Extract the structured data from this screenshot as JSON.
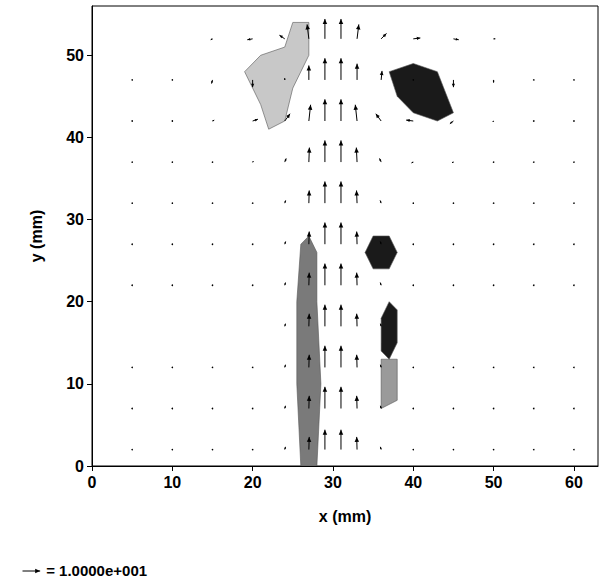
{
  "chart_data": {
    "type": "vector_field",
    "xlabel": "x (mm)",
    "ylabel": "y (mm)",
    "xlim": [
      0,
      63
    ],
    "ylim": [
      0,
      56
    ],
    "xticks": [
      0,
      10,
      20,
      30,
      40,
      50,
      60
    ],
    "yticks": [
      0,
      10,
      20,
      30,
      40,
      50
    ],
    "grid": false,
    "color": "#000000",
    "x": [
      5,
      10,
      15,
      20,
      24,
      27,
      29,
      31,
      33,
      36,
      40,
      45,
      50,
      55,
      60
    ],
    "y": [
      2,
      7,
      12,
      17,
      22,
      27,
      32,
      37,
      42,
      47,
      52
    ],
    "u": [
      [
        0,
        0,
        0.1,
        0.2,
        0.4,
        0.2,
        0,
        0,
        -0.2,
        -0.4,
        -0.2,
        -0.1,
        0,
        0,
        0
      ],
      [
        0,
        0,
        0.1,
        0.2,
        0.4,
        0.2,
        0,
        0,
        -0.2,
        -0.4,
        -0.2,
        -0.1,
        0,
        0,
        0
      ],
      [
        0,
        0,
        0.1,
        0.2,
        0.4,
        0.2,
        0,
        0,
        -0.2,
        -0.4,
        -0.2,
        -0.1,
        0,
        0,
        0
      ],
      [
        0,
        0,
        0.1,
        0.2,
        0.4,
        0.2,
        0,
        0,
        -0.2,
        -0.4,
        -0.3,
        -0.1,
        0,
        0,
        0
      ],
      [
        0,
        0,
        0.1,
        0.2,
        0.4,
        0.2,
        0,
        0,
        -0.2,
        -0.5,
        -0.3,
        -0.1,
        0,
        0,
        0
      ],
      [
        0,
        0,
        0.1,
        0.2,
        0.5,
        0.2,
        0,
        0,
        -0.2,
        -0.5,
        -0.3,
        -0.2,
        0,
        0,
        0
      ],
      [
        0,
        0,
        0.1,
        0.3,
        0.5,
        0.2,
        0,
        0,
        -0.3,
        -0.6,
        -0.5,
        -0.3,
        0,
        0,
        0
      ],
      [
        0,
        0,
        0.2,
        0.5,
        0.8,
        0.3,
        0,
        0,
        -0.4,
        -0.9,
        -1.0,
        -0.8,
        -0.2,
        0,
        0
      ],
      [
        0,
        0.2,
        1,
        3,
        3,
        1,
        0,
        0,
        -1,
        -3,
        -4,
        -2,
        -0.5,
        0,
        0
      ],
      [
        0,
        -0.3,
        -0.5,
        0,
        0,
        0,
        0,
        0,
        0,
        0.5,
        0,
        0,
        0,
        0,
        0
      ],
      [
        0,
        0,
        -1,
        -3,
        -3,
        -1,
        0,
        0,
        1,
        3,
        4,
        3,
        1,
        0,
        0
      ]
    ],
    "v": [
      [
        0.3,
        0.3,
        0.3,
        0.4,
        1.5,
        7,
        11,
        11,
        7,
        1.5,
        0.4,
        0.3,
        0.3,
        0.3,
        0.3
      ],
      [
        0.3,
        0.3,
        0.3,
        0.4,
        1.5,
        7,
        12,
        12,
        7,
        1.5,
        0.4,
        0.3,
        0.3,
        0.3,
        0.3
      ],
      [
        0.3,
        0.3,
        0.3,
        0.4,
        1.5,
        7,
        12,
        12,
        7,
        1.5,
        0.4,
        0.3,
        0.3,
        0.3,
        0.3
      ],
      [
        0.3,
        0.3,
        0.3,
        0.4,
        1.5,
        7,
        12,
        12,
        7,
        1.5,
        0.4,
        0.3,
        0.3,
        0.3,
        0.3
      ],
      [
        0.3,
        0.3,
        0.3,
        0.4,
        1.5,
        7,
        12,
        12,
        7,
        1.5,
        0.4,
        0.3,
        0.3,
        0.3,
        0.3
      ],
      [
        0.3,
        0.3,
        0.3,
        0.4,
        1.5,
        7,
        12,
        12,
        7,
        1.5,
        0.4,
        0.3,
        0.3,
        0.3,
        0.3
      ],
      [
        0.3,
        0.3,
        0.3,
        0.4,
        1.5,
        7,
        12,
        12,
        7,
        1.5,
        0.3,
        0.3,
        0.3,
        0.3,
        0.3
      ],
      [
        0.3,
        0.3,
        0.3,
        0.5,
        2,
        8,
        12,
        12,
        8,
        2,
        -0.5,
        -0.3,
        0.3,
        0.3,
        0.3
      ],
      [
        0.3,
        0.3,
        0.5,
        1,
        4,
        9,
        12,
        12,
        9,
        4,
        0.5,
        -1.5,
        -0.5,
        0.3,
        0.3
      ],
      [
        0.3,
        0,
        -2,
        -4,
        1,
        8,
        12,
        12,
        9,
        5,
        0.5,
        -4,
        -1.5,
        0.3,
        0.3
      ],
      [
        0.3,
        0.3,
        -0.5,
        -0.5,
        2,
        8,
        11,
        11,
        8,
        3,
        0.5,
        -0.5,
        0,
        0.3,
        0.3
      ]
    ],
    "reference": {
      "value": 10,
      "label": "= 1.0000e+001"
    },
    "patches": [
      {
        "color": "#7a7a7a",
        "points": [
          [
            26,
            0
          ],
          [
            28,
            0
          ],
          [
            28.5,
            10
          ],
          [
            28,
            20
          ],
          [
            28,
            26
          ],
          [
            27,
            28
          ],
          [
            26,
            27
          ],
          [
            25.5,
            20
          ],
          [
            25.5,
            10
          ]
        ]
      },
      {
        "color": "#c8c8c8",
        "points": [
          [
            19,
            48
          ],
          [
            21,
            50
          ],
          [
            24,
            51
          ],
          [
            25,
            54
          ],
          [
            27,
            54
          ],
          [
            27,
            50
          ],
          [
            25,
            46
          ],
          [
            24,
            42
          ],
          [
            22,
            41
          ],
          [
            21,
            44
          ]
        ]
      },
      {
        "color": "#1a1a1a",
        "points": [
          [
            37,
            48
          ],
          [
            40,
            49
          ],
          [
            43,
            48
          ],
          [
            45,
            43
          ],
          [
            43,
            42
          ],
          [
            40,
            43
          ],
          [
            38,
            45
          ]
        ]
      },
      {
        "color": "#1a1a1a",
        "points": [
          [
            34,
            26
          ],
          [
            35,
            28
          ],
          [
            37,
            28
          ],
          [
            38,
            26
          ],
          [
            37,
            24
          ],
          [
            35,
            24
          ]
        ]
      },
      {
        "color": "#9a9a9a",
        "points": [
          [
            36,
            7
          ],
          [
            36,
            13
          ],
          [
            38,
            13
          ],
          [
            38,
            8
          ]
        ]
      },
      {
        "color": "#1a1a1a",
        "points": [
          [
            36,
            14
          ],
          [
            36,
            18
          ],
          [
            37,
            20
          ],
          [
            38,
            19
          ],
          [
            38,
            15
          ],
          [
            37,
            13
          ]
        ]
      }
    ]
  }
}
